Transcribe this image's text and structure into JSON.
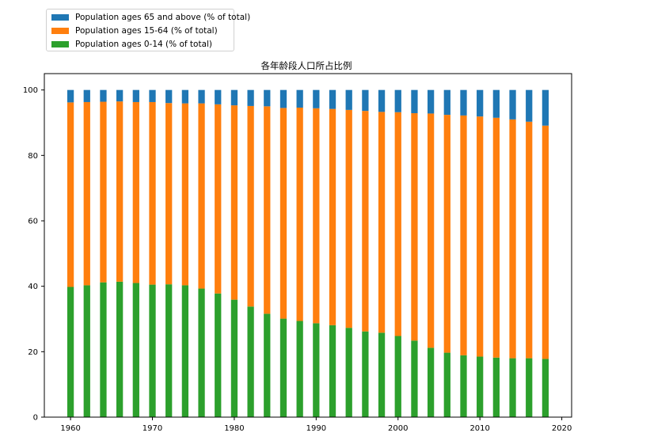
{
  "chart_data": {
    "type": "bar",
    "stacked": true,
    "title": "各年龄段人口所占比例",
    "xlabel": "",
    "ylabel": "",
    "xlim": [
      1956.8,
      2021.2
    ],
    "ylim": [
      0,
      105
    ],
    "x_ticks": [
      1960,
      1970,
      1980,
      1990,
      2000,
      2010,
      2020
    ],
    "y_ticks": [
      0,
      20,
      40,
      60,
      80,
      100
    ],
    "grid": false,
    "legend_position": "upper-left-outside",
    "x": [
      1960,
      1962,
      1964,
      1966,
      1968,
      1970,
      1972,
      1974,
      1976,
      1978,
      1980,
      1982,
      1984,
      1986,
      1988,
      1990,
      1992,
      1994,
      1996,
      1998,
      2000,
      2002,
      2004,
      2006,
      2008,
      2010,
      2012,
      2014,
      2016,
      2018
    ],
    "series": [
      {
        "name": "Population ages 0-14 (% of total)",
        "color": "#2ca02c",
        "values": [
          39.8,
          40.3,
          41.2,
          41.4,
          41.0,
          40.5,
          40.6,
          40.3,
          39.3,
          37.8,
          35.9,
          33.8,
          31.6,
          30.1,
          29.4,
          28.7,
          28.1,
          27.3,
          26.2,
          25.8,
          24.8,
          23.4,
          21.2,
          19.7,
          18.9,
          18.5,
          18.2,
          18.0,
          18.0,
          17.8
        ]
      },
      {
        "name": "Population ages 15-64 (% of total)",
        "color": "#ff7f0e",
        "values": [
          56.4,
          56.0,
          55.2,
          55.1,
          55.3,
          55.8,
          55.4,
          55.6,
          56.6,
          57.8,
          59.4,
          61.3,
          63.4,
          64.4,
          65.2,
          65.7,
          66.1,
          66.6,
          67.4,
          67.5,
          68.4,
          69.5,
          71.6,
          72.7,
          73.3,
          73.4,
          73.3,
          73.0,
          72.3,
          71.3
        ]
      },
      {
        "name": "Population ages 65 and above (% of total)",
        "color": "#1f77b4",
        "values": [
          3.8,
          3.7,
          3.6,
          3.5,
          3.7,
          3.7,
          4.0,
          4.1,
          4.1,
          4.4,
          4.7,
          4.9,
          5.0,
          5.5,
          5.4,
          5.6,
          5.8,
          6.1,
          6.4,
          6.7,
          6.8,
          7.1,
          7.2,
          7.6,
          7.8,
          8.1,
          8.5,
          9.0,
          9.7,
          10.9
        ]
      }
    ],
    "legend": [
      "Population ages 65 and above (% of total)",
      "Population ages 15-64 (% of total)",
      "Population ages 0-14 (% of total)"
    ]
  }
}
